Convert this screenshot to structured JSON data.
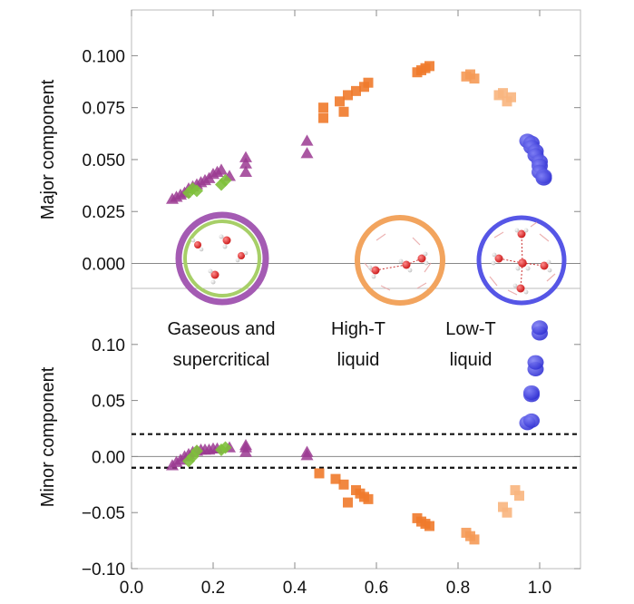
{
  "chart_data": {
    "type": "scatter",
    "x_axis": {
      "range": [
        0.0,
        1.1
      ],
      "ticks": [
        "0.0",
        "0.2",
        "0.4",
        "0.6",
        "0.8",
        "1.0"
      ]
    },
    "panels": [
      {
        "id": "major",
        "ylabel": "Major component",
        "ylim": [
          -0.012,
          0.122
        ],
        "yticks": [
          "0.000",
          "0.025",
          "0.050",
          "0.075",
          "0.100"
        ],
        "baseline": 0.0
      },
      {
        "id": "minor",
        "ylabel": "Minor component",
        "ylim": [
          -0.1,
          0.15
        ],
        "yticks": [
          "−0.10",
          "−0.05",
          "0.00",
          "0.05",
          "0.10"
        ],
        "baseline": 0.0,
        "dashed_lines": [
          0.02,
          -0.01
        ]
      }
    ],
    "series": [
      {
        "marker": "triangle",
        "color": "#9b3a92",
        "major": [
          [
            0.1,
            0.031
          ],
          [
            0.11,
            0.032
          ],
          [
            0.12,
            0.033
          ],
          [
            0.13,
            0.034
          ],
          [
            0.14,
            0.036
          ],
          [
            0.15,
            0.037
          ],
          [
            0.16,
            0.038
          ],
          [
            0.17,
            0.039
          ],
          [
            0.18,
            0.04
          ],
          [
            0.19,
            0.041
          ],
          [
            0.2,
            0.043
          ],
          [
            0.21,
            0.044
          ],
          [
            0.22,
            0.045
          ],
          [
            0.24,
            0.042
          ],
          [
            0.28,
            0.044
          ],
          [
            0.28,
            0.048
          ],
          [
            0.28,
            0.051
          ],
          [
            0.43,
            0.053
          ],
          [
            0.43,
            0.059
          ]
        ],
        "minor": [
          [
            0.1,
            -0.008
          ],
          [
            0.11,
            -0.005
          ],
          [
            0.12,
            -0.003
          ],
          [
            0.13,
            0.0
          ],
          [
            0.14,
            0.002
          ],
          [
            0.15,
            0.004
          ],
          [
            0.16,
            0.005
          ],
          [
            0.17,
            0.006
          ],
          [
            0.18,
            0.006
          ],
          [
            0.19,
            0.006
          ],
          [
            0.2,
            0.007
          ],
          [
            0.21,
            0.007
          ],
          [
            0.24,
            0.008
          ],
          [
            0.28,
            0.004
          ],
          [
            0.28,
            0.008
          ],
          [
            0.28,
            0.01
          ],
          [
            0.43,
            0.001
          ],
          [
            0.43,
            0.004
          ]
        ]
      },
      {
        "marker": "diamond",
        "color": "#7ec03b",
        "major": [
          [
            0.14,
            0.034
          ],
          [
            0.15,
            0.036
          ],
          [
            0.16,
            0.035
          ],
          [
            0.22,
            0.038
          ],
          [
            0.23,
            0.04
          ]
        ],
        "minor": [
          [
            0.14,
            -0.004
          ],
          [
            0.15,
            0.0
          ],
          [
            0.16,
            0.005
          ],
          [
            0.22,
            0.006
          ],
          [
            0.23,
            0.008
          ]
        ]
      },
      {
        "marker": "square",
        "color": "#f07a2b",
        "major": [
          [
            0.47,
            0.07
          ],
          [
            0.47,
            0.075
          ],
          [
            0.51,
            0.078
          ],
          [
            0.52,
            0.073
          ],
          [
            0.53,
            0.081
          ],
          [
            0.55,
            0.083
          ],
          [
            0.57,
            0.085
          ],
          [
            0.58,
            0.087
          ],
          [
            0.7,
            0.092
          ],
          [
            0.71,
            0.093
          ],
          [
            0.72,
            0.094
          ],
          [
            0.73,
            0.095
          ]
        ],
        "minor": [
          [
            0.46,
            -0.015
          ],
          [
            0.5,
            -0.02
          ],
          [
            0.52,
            -0.025
          ],
          [
            0.53,
            -0.041
          ],
          [
            0.55,
            -0.03
          ],
          [
            0.56,
            -0.033
          ],
          [
            0.57,
            -0.036
          ],
          [
            0.58,
            -0.038
          ],
          [
            0.7,
            -0.055
          ],
          [
            0.71,
            -0.058
          ],
          [
            0.72,
            -0.06
          ],
          [
            0.73,
            -0.062
          ]
        ]
      },
      {
        "marker": "square",
        "color": "#f59a56",
        "major": [
          [
            0.82,
            0.09
          ],
          [
            0.83,
            0.091
          ],
          [
            0.84,
            0.089
          ]
        ],
        "minor": [
          [
            0.82,
            -0.068
          ],
          [
            0.83,
            -0.071
          ],
          [
            0.84,
            -0.074
          ]
        ]
      },
      {
        "marker": "square",
        "color": "#f8b57e",
        "major": [
          [
            0.9,
            0.081
          ],
          [
            0.91,
            0.082
          ],
          [
            0.92,
            0.078
          ],
          [
            0.93,
            0.08
          ]
        ],
        "minor": [
          [
            0.91,
            -0.045
          ],
          [
            0.92,
            -0.05
          ],
          [
            0.94,
            -0.03
          ],
          [
            0.95,
            -0.035
          ]
        ]
      },
      {
        "marker": "circle",
        "color": "#3a3ad9",
        "major": [
          [
            0.97,
            0.059
          ],
          [
            0.98,
            0.058
          ],
          [
            0.98,
            0.056
          ],
          [
            0.99,
            0.054
          ],
          [
            0.99,
            0.052
          ],
          [
            1.0,
            0.049
          ],
          [
            1.0,
            0.047
          ],
          [
            1.0,
            0.044
          ],
          [
            1.01,
            0.042
          ],
          [
            1.01,
            0.041
          ]
        ],
        "minor": [
          [
            0.97,
            0.03
          ],
          [
            0.98,
            0.032
          ],
          [
            0.98,
            0.055
          ],
          [
            0.98,
            0.057
          ],
          [
            0.99,
            0.078
          ],
          [
            0.99,
            0.084
          ],
          [
            1.0,
            0.11
          ],
          [
            1.0,
            0.115
          ]
        ]
      }
    ],
    "annotations": {
      "gas": {
        "line1": "Gaseous and",
        "line2": "supercritical",
        "ring_colors": [
          "#a45bb3",
          "#a7cf68"
        ]
      },
      "hightT": {
        "line1": "High-T",
        "line2": "liquid",
        "ring_colors": [
          "#f2a45e"
        ]
      },
      "lowT": {
        "line1": "Low-T",
        "line2": "liquid",
        "ring_colors": [
          "#5656e6"
        ]
      }
    },
    "colors": {
      "frame": "#bbbbbb",
      "text": "#111111",
      "dashed": "#111111",
      "baseline": "#888888"
    }
  }
}
